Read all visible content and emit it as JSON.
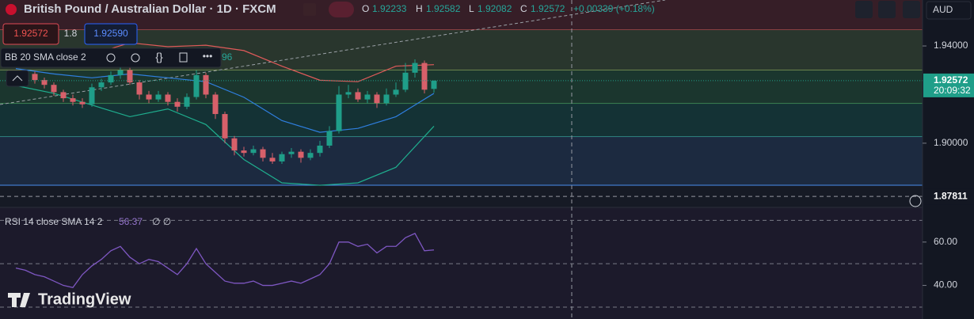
{
  "header": {
    "symbol": "British Pound / Australian Dollar · 1D · FXCM",
    "o_label": "O",
    "open": "1.92233",
    "h_label": "H",
    "high": "1.92582",
    "l_label": "L",
    "low": "1.92082",
    "c_label": "C",
    "close": "1.92572",
    "change": "+0.00339 (+0.18%)",
    "sell": "1.92572",
    "spread": "1.8",
    "buy": "1.92590",
    "currency": "AUD"
  },
  "bb_legend": {
    "label": "BB 20 SMA close 2",
    "value": "96"
  },
  "rsi_legend": {
    "label": "RSI 14 close SMA 14 2",
    "value": "56.37",
    "extra": "∅ ∅"
  },
  "logo": "TradingView",
  "price_axis": {
    "ylim": [
      1.8736,
      1.9589
    ],
    "yticks": [
      {
        "value": 1.94,
        "label": "1.94000"
      },
      {
        "value": 1.9,
        "label": "1.90000"
      }
    ],
    "last_price": 1.92572,
    "countdown": "20:09:32",
    "crosshair_price": 1.87811
  },
  "rsi_axis": {
    "ylim": [
      24.5,
      76
    ],
    "yticks": [
      {
        "value": 60,
        "label": "60.00"
      },
      {
        "value": 40,
        "label": "40.00"
      }
    ],
    "bands": [
      70,
      50,
      30
    ],
    "color": "#7e57c2",
    "values": [
      48,
      47,
      45,
      44,
      42,
      40,
      39,
      45,
      49,
      52,
      56,
      58,
      53,
      50,
      52,
      51,
      48,
      45,
      50,
      57,
      50,
      46,
      42,
      41,
      41,
      42,
      40,
      40,
      41,
      42,
      41,
      43,
      45,
      50,
      60,
      60,
      58,
      59,
      55,
      58,
      58,
      62,
      64,
      56,
      56.37
    ]
  },
  "levels": [
    {
      "value": 1.9467,
      "color": "#e04a55"
    },
    {
      "value": 1.9301,
      "color": "#b5c96a"
    },
    {
      "value": 1.9163,
      "color": "#5cc46e"
    },
    {
      "value": 1.9026,
      "color": "#3fb8b0"
    },
    {
      "value": 1.8827,
      "color": "#4a8ef0"
    }
  ],
  "candles": {
    "up_color": "#1f9e89",
    "down_color": "#d7606a",
    "ohlc": [
      {
        "o": 1.925,
        "h": 1.929,
        "l": 1.9235,
        "c": 1.927
      },
      {
        "o": 1.927,
        "h": 1.93,
        "l": 1.9255,
        "c": 1.9285
      },
      {
        "o": 1.9285,
        "h": 1.9295,
        "l": 1.9245,
        "c": 1.926
      },
      {
        "o": 1.926,
        "h": 1.927,
        "l": 1.9225,
        "c": 1.924
      },
      {
        "o": 1.924,
        "h": 1.925,
        "l": 1.9195,
        "c": 1.921
      },
      {
        "o": 1.921,
        "h": 1.922,
        "l": 1.917,
        "c": 1.9185
      },
      {
        "o": 1.9185,
        "h": 1.92,
        "l": 1.9155,
        "c": 1.917
      },
      {
        "o": 1.917,
        "h": 1.9185,
        "l": 1.9145,
        "c": 1.916
      },
      {
        "o": 1.916,
        "h": 1.9245,
        "l": 1.915,
        "c": 1.923
      },
      {
        "o": 1.923,
        "h": 1.9265,
        "l": 1.9215,
        "c": 1.925
      },
      {
        "o": 1.925,
        "h": 1.9295,
        "l": 1.924,
        "c": 1.928
      },
      {
        "o": 1.928,
        "h": 1.933,
        "l": 1.9265,
        "c": 1.93
      },
      {
        "o": 1.93,
        "h": 1.931,
        "l": 1.924,
        "c": 1.925
      },
      {
        "o": 1.925,
        "h": 1.926,
        "l": 1.918,
        "c": 1.92
      },
      {
        "o": 1.92,
        "h": 1.9215,
        "l": 1.9165,
        "c": 1.918
      },
      {
        "o": 1.918,
        "h": 1.9215,
        "l": 1.917,
        "c": 1.92
      },
      {
        "o": 1.92,
        "h": 1.921,
        "l": 1.9155,
        "c": 1.917
      },
      {
        "o": 1.917,
        "h": 1.9185,
        "l": 1.913,
        "c": 1.915
      },
      {
        "o": 1.915,
        "h": 1.9205,
        "l": 1.914,
        "c": 1.919
      },
      {
        "o": 1.919,
        "h": 1.93,
        "l": 1.918,
        "c": 1.928
      },
      {
        "o": 1.928,
        "h": 1.929,
        "l": 1.9185,
        "c": 1.92
      },
      {
        "o": 1.92,
        "h": 1.921,
        "l": 1.91,
        "c": 1.912
      },
      {
        "o": 1.912,
        "h": 1.913,
        "l": 1.9,
        "c": 1.902
      },
      {
        "o": 1.902,
        "h": 1.903,
        "l": 1.895,
        "c": 1.897
      },
      {
        "o": 1.897,
        "h": 1.8985,
        "l": 1.8945,
        "c": 1.896
      },
      {
        "o": 1.896,
        "h": 1.899,
        "l": 1.895,
        "c": 1.8975
      },
      {
        "o": 1.8975,
        "h": 1.8985,
        "l": 1.8925,
        "c": 1.894
      },
      {
        "o": 1.894,
        "h": 1.896,
        "l": 1.8915,
        "c": 1.8925
      },
      {
        "o": 1.8925,
        "h": 1.8965,
        "l": 1.8915,
        "c": 1.8955
      },
      {
        "o": 1.8955,
        "h": 1.898,
        "l": 1.894,
        "c": 1.8965
      },
      {
        "o": 1.8965,
        "h": 1.8975,
        "l": 1.892,
        "c": 1.894
      },
      {
        "o": 1.894,
        "h": 1.8975,
        "l": 1.893,
        "c": 1.896
      },
      {
        "o": 1.896,
        "h": 1.901,
        "l": 1.8945,
        "c": 1.899
      },
      {
        "o": 1.899,
        "h": 1.907,
        "l": 1.898,
        "c": 1.905
      },
      {
        "o": 1.905,
        "h": 1.9235,
        "l": 1.904,
        "c": 1.92
      },
      {
        "o": 1.92,
        "h": 1.924,
        "l": 1.9185,
        "c": 1.921
      },
      {
        "o": 1.921,
        "h": 1.9225,
        "l": 1.917,
        "c": 1.918
      },
      {
        "o": 1.918,
        "h": 1.9215,
        "l": 1.9165,
        "c": 1.92
      },
      {
        "o": 1.92,
        "h": 1.921,
        "l": 1.9145,
        "c": 1.9165
      },
      {
        "o": 1.9165,
        "h": 1.9225,
        "l": 1.9155,
        "c": 1.92
      },
      {
        "o": 1.92,
        "h": 1.925,
        "l": 1.919,
        "c": 1.922
      },
      {
        "o": 1.922,
        "h": 1.933,
        "l": 1.921,
        "c": 1.929
      },
      {
        "o": 1.929,
        "h": 1.9345,
        "l": 1.927,
        "c": 1.933
      },
      {
        "o": 1.933,
        "h": 1.934,
        "l": 1.9205,
        "c": 1.922
      },
      {
        "o": 1.92233,
        "h": 1.92582,
        "l": 1.92082,
        "c": 1.92572
      }
    ]
  },
  "bollinger": {
    "x": [
      0,
      4,
      8,
      12,
      16,
      20,
      24,
      28,
      32,
      36,
      40,
      44
    ],
    "series": [
      {
        "color": "#e05a5a",
        "values": [
          1.9349,
          1.9333,
          1.9365,
          1.9413,
          1.9397,
          1.9403,
          1.9381,
          1.9317,
          1.9259,
          1.9253,
          1.9317,
          1.9323
        ]
      },
      {
        "color": "#2f7fe0",
        "values": [
          1.9307,
          1.9285,
          1.9269,
          1.9285,
          1.9269,
          1.9253,
          1.9189,
          1.9093,
          1.9045,
          1.9061,
          1.9109,
          1.9205
        ]
      },
      {
        "color": "#1fae8e",
        "values": [
          1.9237,
          1.9205,
          1.9157,
          1.9109,
          1.9141,
          1.9077,
          1.8933,
          1.8837,
          1.8827,
          1.8837,
          1.8901,
          1.907
        ]
      }
    ]
  }
}
